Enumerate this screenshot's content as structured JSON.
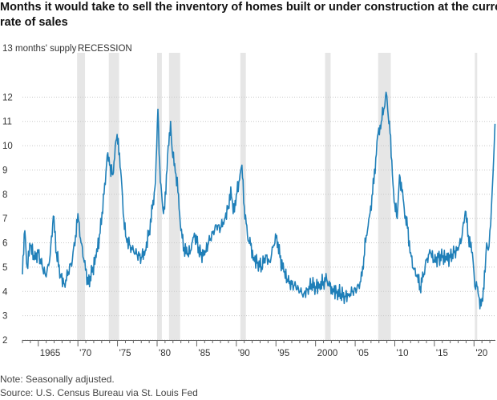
{
  "title_lines": [
    "Months it would take to sell the inventory of homes built or under construction at the current",
    "rate of sales"
  ],
  "unit_label": "13 months' supply",
  "recession_label": "RECESSION",
  "note": "Note: Seasonally adjusted.",
  "source": "Source: U.S. Census Bureau via St. Louis Fed",
  "colors": {
    "line": "#1f7fb8",
    "recession": "#e6e6e6",
    "grid": "#c8c8c8",
    "text": "#333333"
  },
  "chart_data": {
    "type": "line",
    "title": "Months it would take to sell the inventory of homes built or under construction at the current rate of sales",
    "ylabel": "months' supply",
    "ylim": [
      2,
      13
    ],
    "xlim": [
      1963,
      2022.7
    ],
    "y_ticks": [
      2,
      3,
      4,
      5,
      6,
      7,
      8,
      9,
      10,
      11,
      12,
      13
    ],
    "y_tick_labels": [
      "2",
      "3",
      "4",
      "5",
      "6",
      "7",
      "8",
      "9",
      "10",
      "11",
      "12",
      "13 months' supply"
    ],
    "x_ticks": [
      1965,
      1970,
      1975,
      1980,
      1985,
      1990,
      1995,
      2000,
      2005,
      2010,
      2015,
      2020
    ],
    "x_tick_labels": [
      "1965",
      "'70",
      "'75",
      "'80",
      "'85",
      "'90",
      "'95",
      "2000",
      "'05",
      "'10",
      "'15",
      "'20"
    ],
    "grid": true,
    "recessions": [
      [
        1969.9,
        1970.9
      ],
      [
        1973.9,
        1975.2
      ],
      [
        1980.0,
        1980.6
      ],
      [
        1981.5,
        1982.9
      ],
      [
        1990.5,
        1991.2
      ],
      [
        2001.2,
        2001.9
      ],
      [
        2007.9,
        2009.5
      ],
      [
        2020.1,
        2020.4
      ]
    ],
    "series": [
      {
        "values": [
          [
            1963.0,
            4.7
          ],
          [
            1963.3,
            6.5
          ],
          [
            1963.6,
            5.0
          ],
          [
            1964.0,
            5.9
          ],
          [
            1964.5,
            5.3
          ],
          [
            1965.0,
            5.6
          ],
          [
            1965.5,
            5.0
          ],
          [
            1966.0,
            4.6
          ],
          [
            1966.5,
            5.5
          ],
          [
            1966.9,
            7.1
          ],
          [
            1967.3,
            5.6
          ],
          [
            1967.8,
            4.7
          ],
          [
            1968.3,
            4.3
          ],
          [
            1968.8,
            4.8
          ],
          [
            1969.3,
            5.3
          ],
          [
            1969.7,
            6.3
          ],
          [
            1970.0,
            7.2
          ],
          [
            1970.4,
            6.0
          ],
          [
            1970.8,
            5.2
          ],
          [
            1971.3,
            4.3
          ],
          [
            1971.8,
            4.8
          ],
          [
            1972.3,
            5.4
          ],
          [
            1972.8,
            6.4
          ],
          [
            1973.3,
            8.0
          ],
          [
            1973.7,
            9.6
          ],
          [
            1974.0,
            9.2
          ],
          [
            1974.4,
            8.8
          ],
          [
            1974.8,
            10.2
          ],
          [
            1975.1,
            10.3
          ],
          [
            1975.4,
            9.0
          ],
          [
            1975.8,
            7.0
          ],
          [
            1976.1,
            6.2
          ],
          [
            1976.6,
            5.9
          ],
          [
            1977.0,
            5.7
          ],
          [
            1977.5,
            5.5
          ],
          [
            1978.0,
            5.4
          ],
          [
            1978.5,
            5.7
          ],
          [
            1979.0,
            6.5
          ],
          [
            1979.4,
            7.4
          ],
          [
            1979.8,
            8.5
          ],
          [
            1980.1,
            11.5
          ],
          [
            1980.4,
            8.5
          ],
          [
            1980.8,
            7.2
          ],
          [
            1981.1,
            8.0
          ],
          [
            1981.4,
            10.0
          ],
          [
            1981.7,
            11.0
          ],
          [
            1981.9,
            9.8
          ],
          [
            1982.3,
            8.9
          ],
          [
            1982.7,
            8.0
          ],
          [
            1983.0,
            6.5
          ],
          [
            1983.4,
            5.8
          ],
          [
            1983.8,
            5.5
          ],
          [
            1984.3,
            5.7
          ],
          [
            1984.7,
            6.4
          ],
          [
            1985.0,
            6.0
          ],
          [
            1985.5,
            5.5
          ],
          [
            1986.0,
            5.5
          ],
          [
            1986.5,
            6.0
          ],
          [
            1987.0,
            6.4
          ],
          [
            1987.5,
            6.7
          ],
          [
            1988.0,
            6.6
          ],
          [
            1988.5,
            7.0
          ],
          [
            1989.0,
            7.5
          ],
          [
            1989.3,
            8.3
          ],
          [
            1989.6,
            7.2
          ],
          [
            1990.0,
            8.0
          ],
          [
            1990.4,
            8.6
          ],
          [
            1990.7,
            9.2
          ],
          [
            1991.0,
            7.5
          ],
          [
            1991.4,
            6.3
          ],
          [
            1991.8,
            5.9
          ],
          [
            1992.2,
            5.4
          ],
          [
            1992.7,
            5.2
          ],
          [
            1993.2,
            5.0
          ],
          [
            1993.7,
            5.5
          ],
          [
            1994.2,
            5.2
          ],
          [
            1994.7,
            5.9
          ],
          [
            1995.1,
            6.3
          ],
          [
            1995.5,
            5.4
          ],
          [
            1996.0,
            4.8
          ],
          [
            1996.5,
            4.4
          ],
          [
            1997.0,
            4.3
          ],
          [
            1997.5,
            4.2
          ],
          [
            1998.0,
            4.0
          ],
          [
            1998.5,
            3.9
          ],
          [
            1999.0,
            4.1
          ],
          [
            1999.5,
            4.3
          ],
          [
            2000.0,
            4.2
          ],
          [
            2000.5,
            4.3
          ],
          [
            2001.0,
            4.4
          ],
          [
            2001.4,
            4.5
          ],
          [
            2001.8,
            4.2
          ],
          [
            2002.2,
            4.1
          ],
          [
            2002.7,
            4.0
          ],
          [
            2003.2,
            3.9
          ],
          [
            2003.7,
            3.8
          ],
          [
            2004.2,
            3.9
          ],
          [
            2004.7,
            4.0
          ],
          [
            2005.2,
            4.1
          ],
          [
            2005.7,
            4.4
          ],
          [
            2006.1,
            5.4
          ],
          [
            2006.4,
            6.3
          ],
          [
            2006.8,
            7.1
          ],
          [
            2007.2,
            8.0
          ],
          [
            2007.6,
            9.5
          ],
          [
            2007.9,
            10.5
          ],
          [
            2008.3,
            11.0
          ],
          [
            2008.6,
            11.5
          ],
          [
            2008.9,
            12.2
          ],
          [
            2009.1,
            11.5
          ],
          [
            2009.4,
            10.5
          ],
          [
            2009.7,
            8.8
          ],
          [
            2010.0,
            7.6
          ],
          [
            2010.3,
            7.0
          ],
          [
            2010.6,
            8.8
          ],
          [
            2010.9,
            8.1
          ],
          [
            2011.2,
            7.4
          ],
          [
            2011.6,
            6.6
          ],
          [
            2012.0,
            5.6
          ],
          [
            2012.4,
            4.9
          ],
          [
            2012.8,
            4.6
          ],
          [
            2013.2,
            4.2
          ],
          [
            2013.6,
            4.6
          ],
          [
            2014.0,
            5.3
          ],
          [
            2014.5,
            5.6
          ],
          [
            2015.0,
            5.2
          ],
          [
            2015.5,
            5.4
          ],
          [
            2016.0,
            5.4
          ],
          [
            2016.5,
            5.3
          ],
          [
            2017.0,
            5.4
          ],
          [
            2017.5,
            5.6
          ],
          [
            2018.0,
            5.7
          ],
          [
            2018.5,
            6.3
          ],
          [
            2018.9,
            7.3
          ],
          [
            2019.3,
            6.3
          ],
          [
            2019.7,
            5.6
          ],
          [
            2019.9,
            5.2
          ],
          [
            2020.1,
            4.2
          ],
          [
            2020.3,
            4.4
          ],
          [
            2020.6,
            3.8
          ],
          [
            2020.9,
            3.4
          ],
          [
            2021.1,
            3.6
          ],
          [
            2021.4,
            4.8
          ],
          [
            2021.6,
            6.0
          ],
          [
            2021.8,
            5.7
          ],
          [
            2022.0,
            6.5
          ],
          [
            2022.2,
            7.5
          ],
          [
            2022.4,
            8.8
          ],
          [
            2022.55,
            10.0
          ],
          [
            2022.65,
            10.9
          ]
        ]
      }
    ]
  }
}
